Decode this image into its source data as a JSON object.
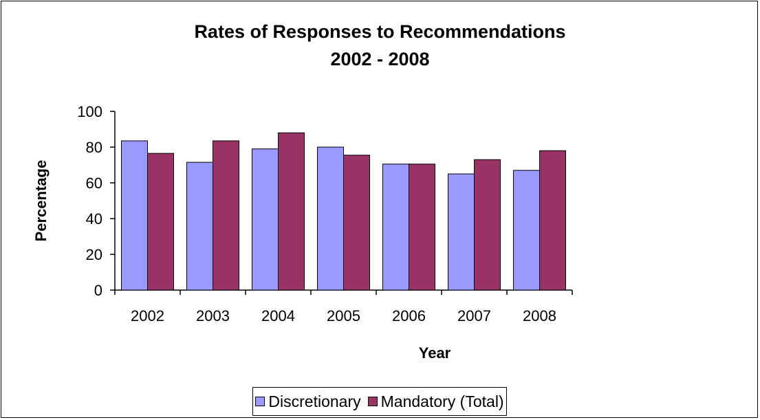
{
  "chart_data": {
    "type": "bar",
    "title": "Rates of Responses to Recommendations",
    "subtitle": "2002 - 2008",
    "xlabel": "Year",
    "ylabel": "Percentage",
    "categories": [
      "2002",
      "2003",
      "2004",
      "2005",
      "2006",
      "2007",
      "2008"
    ],
    "series": [
      {
        "name": "Discretionary",
        "color": "#9999ff",
        "values": [
          83.5,
          71.5,
          79,
          80,
          70.5,
          65,
          67
        ]
      },
      {
        "name": "Mandatory (Total)",
        "color": "#993366",
        "values": [
          76.5,
          83.5,
          88,
          75.5,
          70.5,
          73,
          78
        ]
      }
    ],
    "ylim": [
      0,
      100
    ],
    "yticks": [
      "0",
      "20",
      "40",
      "60",
      "80",
      "100"
    ],
    "grid": false,
    "legend_position": "bottom"
  }
}
